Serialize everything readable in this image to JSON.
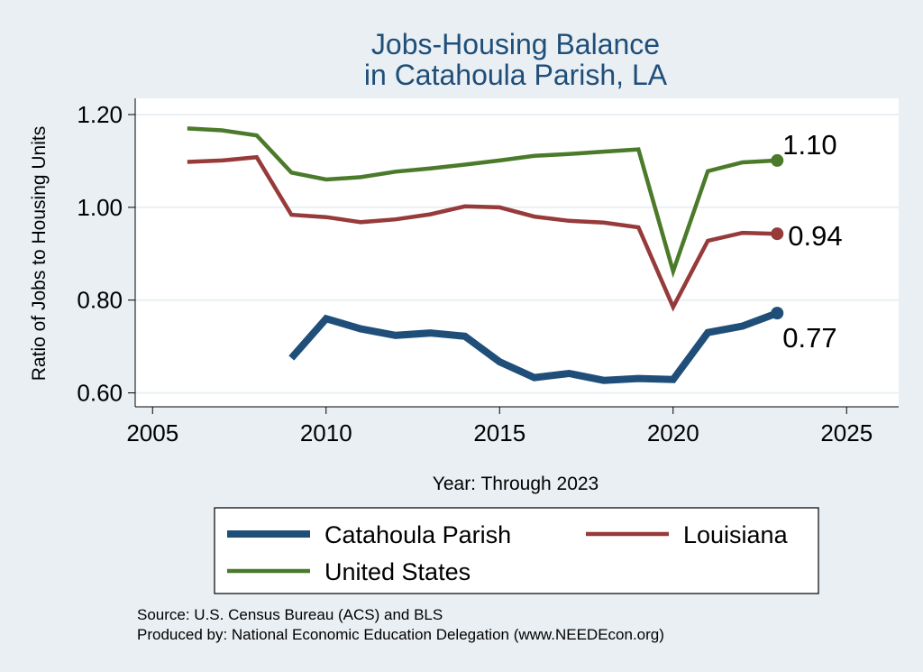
{
  "chart_data": {
    "type": "line",
    "title_lines": [
      "Jobs-Housing Balance",
      "in Catahoula Parish, LA"
    ],
    "xlabel": "Year: Through 2023",
    "ylabel": "Ratio of Jobs to Housing Units",
    "xlim": [
      2004.5,
      2026.5
    ],
    "ylim": [
      0.57,
      1.235
    ],
    "xticks": [
      2005,
      2010,
      2015,
      2020,
      2025
    ],
    "yticks": [
      0.6,
      0.8,
      1.0,
      1.2
    ],
    "ytick_labels": [
      "0.60",
      "0.80",
      "1.00",
      "1.20"
    ],
    "grid": true,
    "series": [
      {
        "name": "Catahoula Parish",
        "color": "#1f4e79",
        "x": [
          2009,
          2010,
          2011,
          2012,
          2013,
          2014,
          2015,
          2016,
          2017,
          2018,
          2019,
          2020,
          2021,
          2022,
          2023
        ],
        "values": [
          0.675,
          0.76,
          0.738,
          0.724,
          0.729,
          0.722,
          0.667,
          0.633,
          0.642,
          0.627,
          0.631,
          0.629,
          0.73,
          0.744,
          0.772
        ],
        "end_label": "0.77"
      },
      {
        "name": "Louisiana",
        "color": "#963a3a",
        "x": [
          2006,
          2007,
          2008,
          2009,
          2010,
          2011,
          2012,
          2013,
          2014,
          2015,
          2016,
          2017,
          2018,
          2019,
          2020,
          2021,
          2022,
          2023
        ],
        "values": [
          1.098,
          1.101,
          1.108,
          0.984,
          0.979,
          0.968,
          0.974,
          0.985,
          1.002,
          1.0,
          0.98,
          0.971,
          0.967,
          0.957,
          0.785,
          0.928,
          0.945,
          0.943
        ],
        "end_label": "0.94"
      },
      {
        "name": "United States",
        "color": "#4a7a2a",
        "x": [
          2006,
          2007,
          2008,
          2009,
          2010,
          2011,
          2012,
          2013,
          2014,
          2015,
          2016,
          2017,
          2018,
          2019,
          2020,
          2021,
          2022,
          2023
        ],
        "values": [
          1.17,
          1.166,
          1.155,
          1.075,
          1.06,
          1.065,
          1.077,
          1.084,
          1.092,
          1.101,
          1.111,
          1.115,
          1.12,
          1.125,
          0.862,
          1.078,
          1.097,
          1.101
        ],
        "end_label": "1.10"
      }
    ],
    "legend": {
      "position": "bottom",
      "order": [
        "Catahoula Parish",
        "Louisiana",
        "United States"
      ]
    }
  },
  "notes": {
    "source": "Source: U.S. Census Bureau (ACS) and BLS",
    "produced_by": "Produced by: National Economic Education Delegation (www.NEEDEcon.org)"
  }
}
